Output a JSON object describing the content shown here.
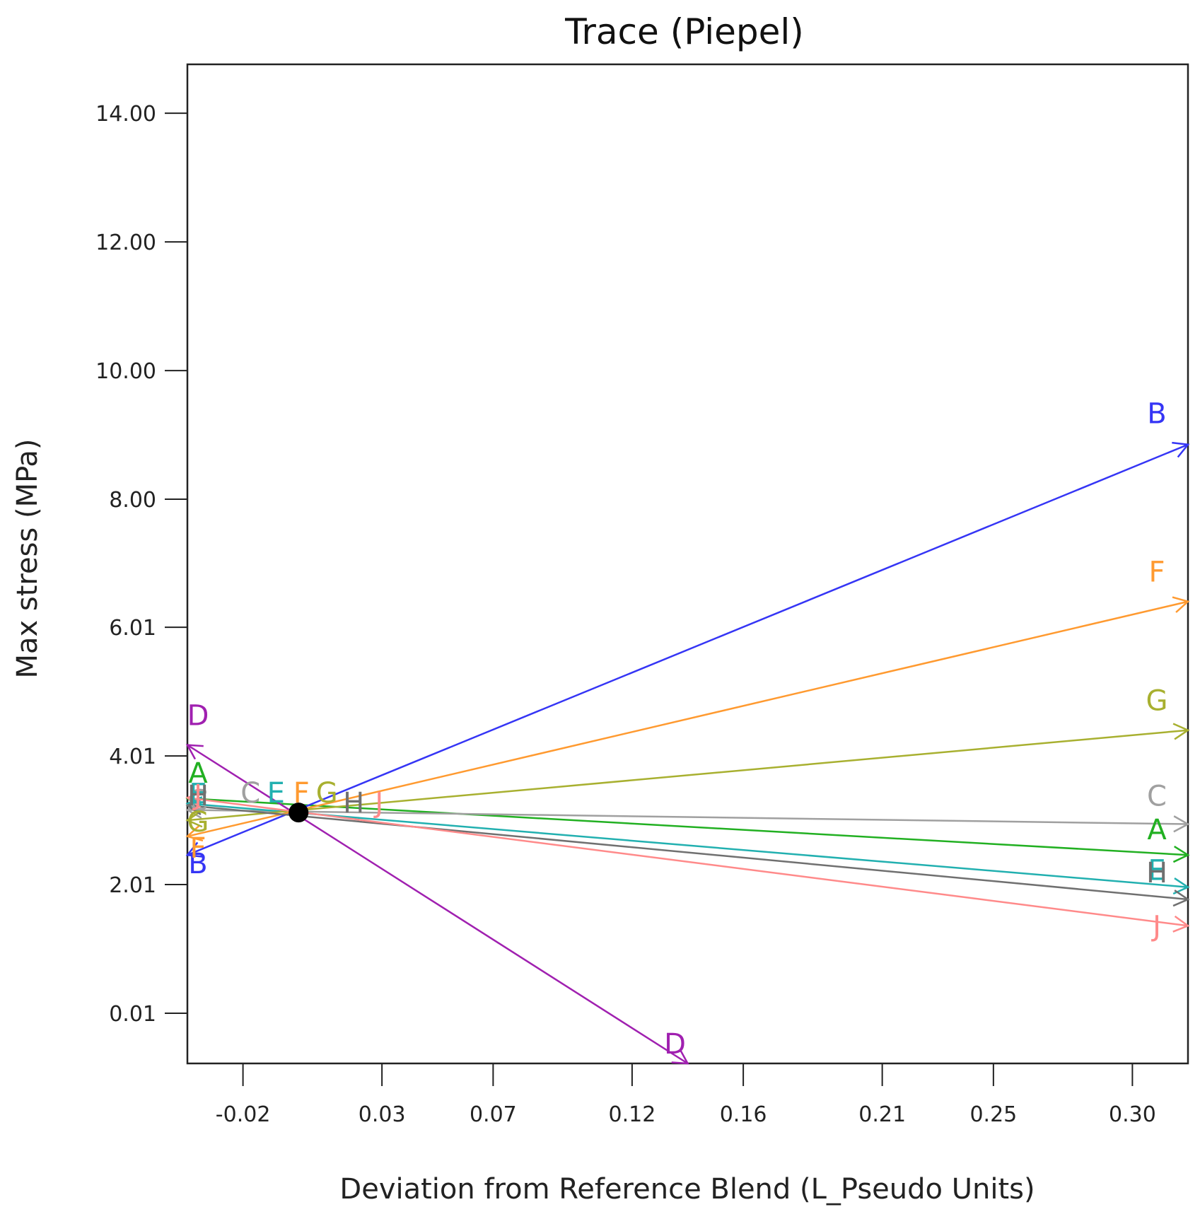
{
  "chart_data": {
    "type": "line",
    "title": "Trace (Piepel)",
    "xlabel": "Deviation from Reference Blend (L_Pseudo Units)",
    "ylabel": "Max stress (MPa)",
    "xlim": [
      -0.04,
      0.32
    ],
    "ylim": [
      -0.77,
      14.76
    ],
    "x_ticks": [
      -0.02,
      0.03,
      0.07,
      0.12,
      0.16,
      0.21,
      0.25,
      0.3
    ],
    "x_tick_labels": [
      "-0.02",
      "0.03",
      "0.07",
      "0.12",
      "0.16",
      "0.21",
      "0.25",
      "0.30"
    ],
    "y_ticks": [
      0.01,
      2.01,
      4.01,
      6.01,
      8.0,
      10.0,
      12.0,
      14.0
    ],
    "y_tick_labels": [
      "0.01",
      "2.01",
      "4.01",
      "6.01",
      "8.00",
      "10.00",
      "12.00",
      "14.00"
    ],
    "grid": false,
    "reference_point": {
      "x": 0.0,
      "y": 3.13
    },
    "series": [
      {
        "name": "A",
        "color": "#22b022",
        "start": {
          "x": -0.04,
          "y": 3.35
        },
        "end": {
          "x": 0.32,
          "y": 2.47
        },
        "start_label": "A",
        "end_label": "A"
      },
      {
        "name": "B",
        "color": "#3535f5",
        "start": {
          "x": -0.04,
          "y": 2.47
        },
        "end": {
          "x": 0.32,
          "y": 8.85
        },
        "start_label": "B",
        "end_label": "B"
      },
      {
        "name": "C",
        "color": "#a0a0a0",
        "start": {
          "x": -0.04,
          "y": 3.17
        },
        "end": {
          "x": 0.32,
          "y": 2.95
        },
        "start_label": "C",
        "end_label": "C"
      },
      {
        "name": "D",
        "color": "#a020b0",
        "start": {
          "x": -0.04,
          "y": 4.18
        },
        "end": {
          "x": 0.14,
          "y": -0.77
        },
        "start_label": "D",
        "end_label": "D"
      },
      {
        "name": "E",
        "color": "#22b0b0",
        "start": {
          "x": -0.04,
          "y": 3.27
        },
        "end": {
          "x": 0.32,
          "y": 1.97
        },
        "start_label": "E",
        "end_label": "E"
      },
      {
        "name": "F",
        "color": "#ff9a30",
        "start": {
          "x": -0.04,
          "y": 2.76
        },
        "end": {
          "x": 0.32,
          "y": 6.41
        },
        "start_label": "F",
        "end_label": "F"
      },
      {
        "name": "G",
        "color": "#a8b030",
        "start": {
          "x": -0.04,
          "y": 3.01
        },
        "end": {
          "x": 0.32,
          "y": 4.41
        },
        "start_label": "G",
        "end_label": "G"
      },
      {
        "name": "H",
        "color": "#707070",
        "start": {
          "x": -0.04,
          "y": 3.24
        },
        "end": {
          "x": 0.32,
          "y": 1.78
        },
        "start_label": "H",
        "end_label": "H"
      },
      {
        "name": "J",
        "color": "#ff8a8a",
        "start": {
          "x": -0.04,
          "y": 3.36
        },
        "end": {
          "x": 0.32,
          "y": 1.37
        },
        "start_label": "J",
        "end_label": "J"
      }
    ],
    "center_labels": [
      {
        "text": "C",
        "color": "#a0a0a0"
      },
      {
        "text": "E",
        "color": "#22b0b0"
      },
      {
        "text": "F",
        "color": "#ff9a30"
      },
      {
        "text": "G",
        "color": "#a8b030"
      },
      {
        "text": "H",
        "color": "#707070"
      },
      {
        "text": "J",
        "color": "#ff8a8a"
      }
    ]
  }
}
